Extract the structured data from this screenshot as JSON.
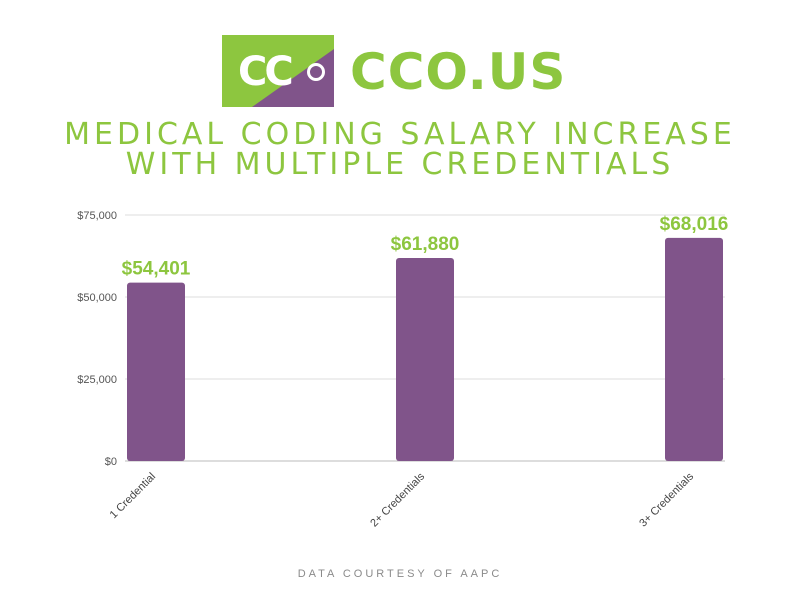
{
  "logo": {
    "mark": "CC",
    "brand": "CCO.US"
  },
  "title_lines": [
    "MEDICAL CODING SALARY INCREASE",
    "WITH MULTIPLE CREDENTIALS"
  ],
  "footer": "DATA COURTESY OF AAPC",
  "colors": {
    "bar": "#80548a",
    "accent": "#8dc63f",
    "grid": "#dddddd",
    "axis": "#bbbbbb"
  },
  "chart_data": {
    "type": "bar",
    "title": "MEDICAL CODING SALARY INCREASE WITH MULTIPLE CREDENTIALS",
    "categories": [
      "1 Credential",
      "2+ Credentials",
      "3+ Credentials"
    ],
    "values": [
      54401,
      61880,
      68016
    ],
    "data_labels": [
      "$54,401",
      "$61,880",
      "$68,016"
    ],
    "y_ticks": [
      0,
      25000,
      50000,
      75000
    ],
    "y_tick_labels": [
      "$0",
      "$25,000",
      "$50,000",
      "$75,000"
    ],
    "ylim": [
      0,
      75000
    ],
    "xlabel": "",
    "ylabel": "",
    "grid": true,
    "legend": "none"
  }
}
